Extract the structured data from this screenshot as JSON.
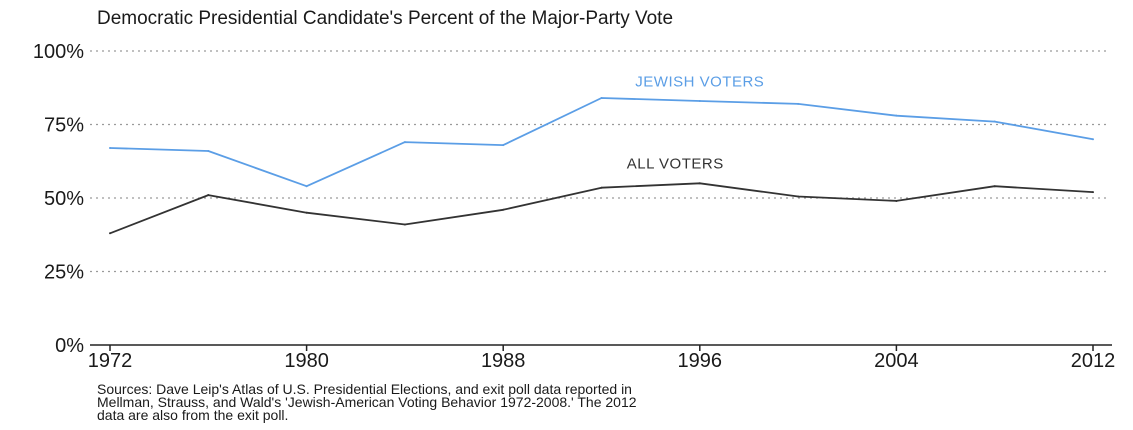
{
  "chart_data": {
    "type": "line",
    "title": "Democratic Presidential Candidate's Percent of the Major-Party Vote",
    "xlabel": "",
    "ylabel": "",
    "x": [
      1972,
      1976,
      1980,
      1984,
      1988,
      1992,
      1996,
      2000,
      2004,
      2008,
      2012
    ],
    "x_ticks": [
      "1972",
      "1980",
      "1988",
      "1996",
      "2004",
      "2012"
    ],
    "x_tick_values": [
      1972,
      1980,
      1988,
      1996,
      2004,
      2012
    ],
    "y_ticks": [
      "0%",
      "25%",
      "50%",
      "75%",
      "100%"
    ],
    "y_tick_values": [
      0,
      25,
      50,
      75,
      100
    ],
    "xlim": [
      1972,
      2012
    ],
    "ylim": [
      0,
      100
    ],
    "grid": "horizontal dotted",
    "series": [
      {
        "name": "JEWISH VOTERS",
        "color": "#5b9ee6",
        "values": [
          67,
          66,
          54,
          69,
          68,
          84,
          83,
          82,
          78,
          76,
          70
        ],
        "label_at": [
          1996,
          88
        ]
      },
      {
        "name": "ALL VOTERS",
        "color": "#333333",
        "values": [
          38,
          51,
          45,
          41,
          46,
          53.5,
          55,
          50.5,
          49,
          54,
          52
        ],
        "label_at": [
          1995,
          60
        ]
      }
    ],
    "source_lines": [
      "Sources: Dave Leip's Atlas of U.S. Presidential Elections, and exit poll data reported in",
      "Mellman, Strauss, and Wald's 'Jewish-American Voting Behavior 1972-2008.' The 2012",
      "data are also from the exit poll."
    ]
  }
}
